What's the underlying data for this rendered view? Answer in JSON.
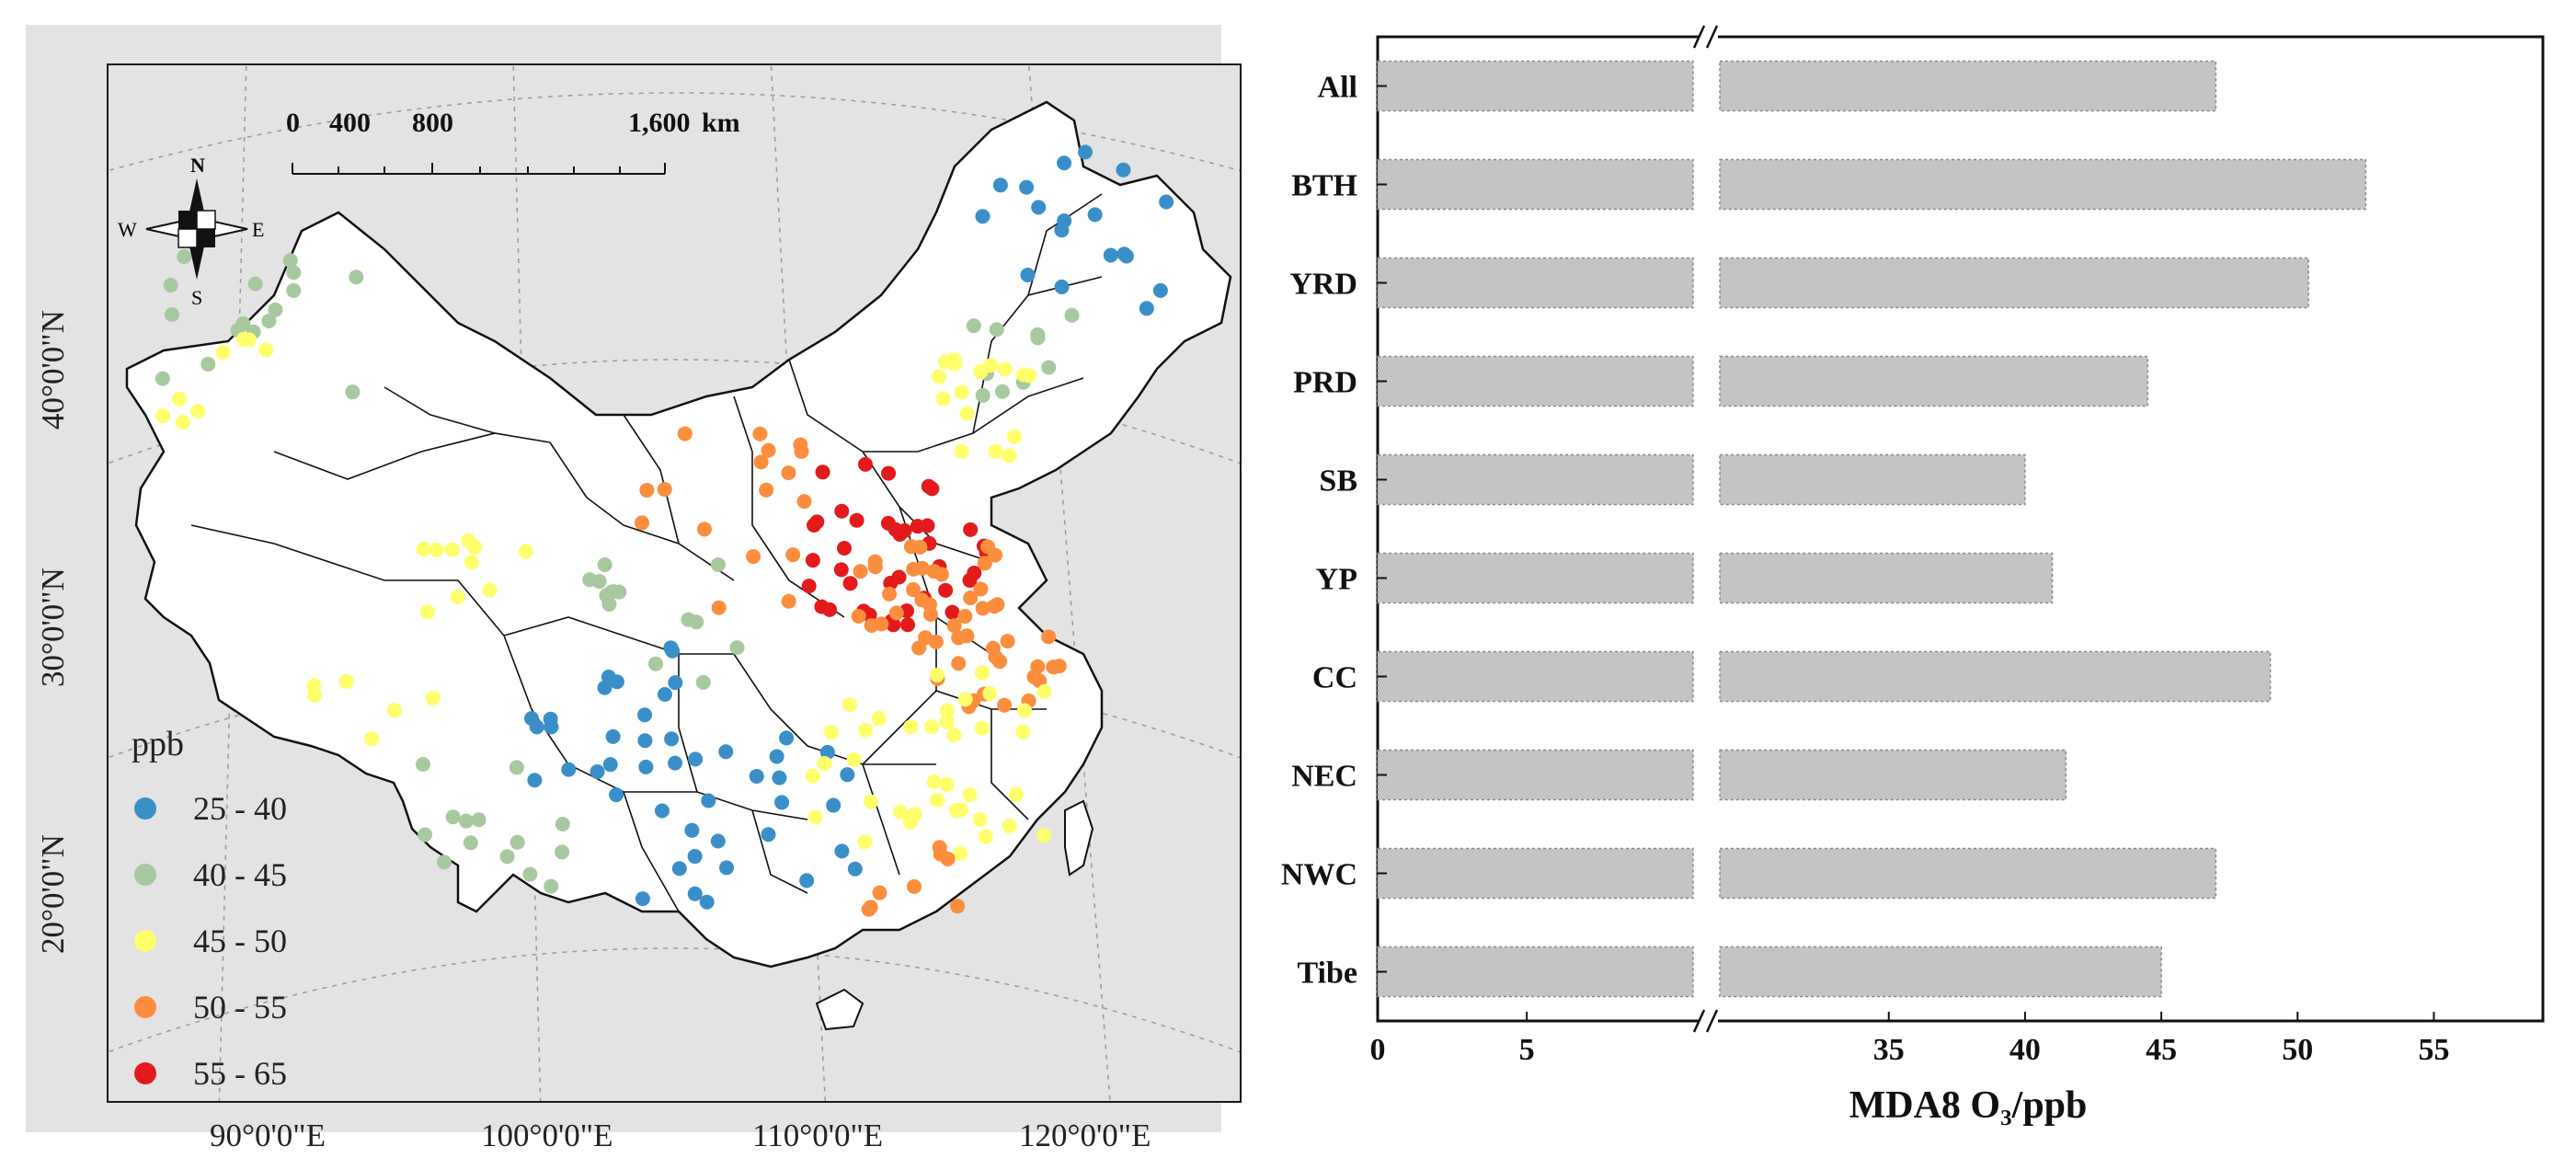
{
  "map": {
    "scale_labels": [
      "0",
      "400",
      "800",
      "1,600"
    ],
    "scale_unit": "km",
    "compass": {
      "n": "N",
      "s": "S",
      "e": "E",
      "w": "W"
    },
    "lon_labels": [
      "90°0'0\"E",
      "100°0'0\"E",
      "110°0'0\"E",
      "120°0'0\"E"
    ],
    "lat_labels": [
      "40°0'0\"N",
      "30°0'0\"N",
      "20°0'0\"N"
    ],
    "legend": {
      "title": "ppb",
      "items": [
        {
          "label": "25 - 40",
          "color": "#3a8fc9"
        },
        {
          "label": "40 - 45",
          "color": "#a8c8a0"
        },
        {
          "label": "45 - 50",
          "color": "#ffff6b"
        },
        {
          "label": "50 - 55",
          "color": "#fb8d3d"
        },
        {
          "label": "55 - 65",
          "color": "#e31a1c"
        }
      ]
    }
  },
  "chart_data": {
    "type": "bar",
    "orientation": "horizontal",
    "categories": [
      "All",
      "BTH",
      "YRD",
      "PRD",
      "SB",
      "YP",
      "CC",
      "NEC",
      "NWC",
      "Tibe"
    ],
    "values": [
      47.0,
      52.5,
      50.4,
      44.5,
      40.0,
      41.0,
      49.0,
      41.5,
      47.0,
      45.0
    ],
    "xlabel": "MDA8 O₃/ppb",
    "axis_break": [
      10,
      30
    ],
    "x_ticks_low": [
      "0",
      "5"
    ],
    "x_ticks_high": [
      "35",
      "40",
      "45",
      "50",
      "55"
    ],
    "xlim": [
      0,
      59
    ],
    "bar_color": "#c4c4c4",
    "grid": false
  }
}
